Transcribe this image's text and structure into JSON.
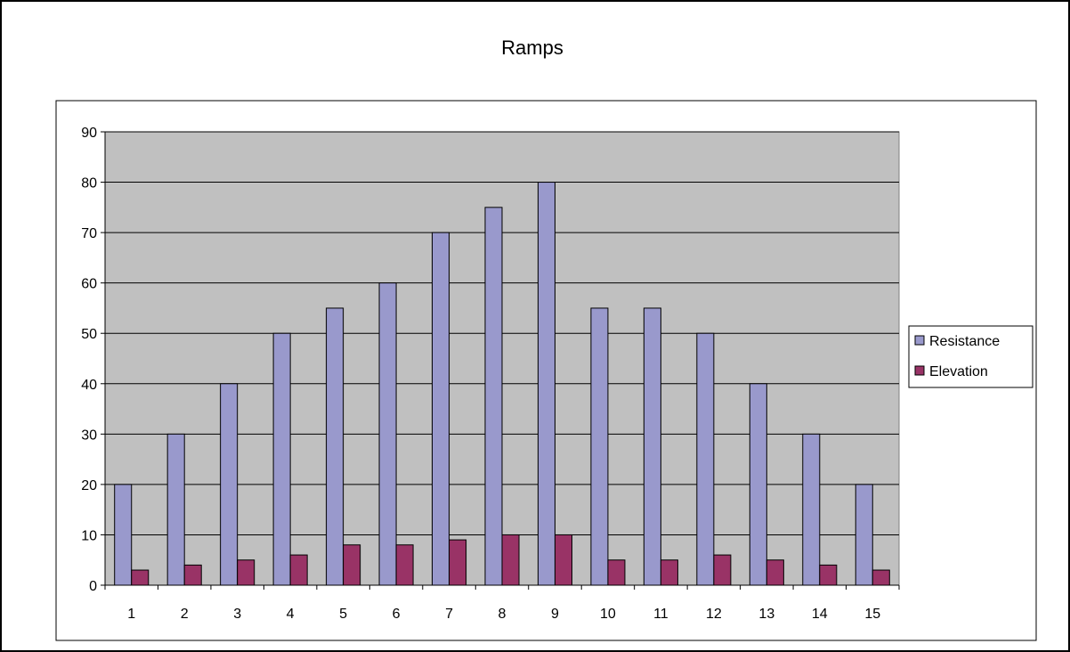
{
  "chart_data": {
    "type": "bar",
    "title": "Ramps",
    "xlabel": "",
    "ylabel": "",
    "categories": [
      "1",
      "2",
      "3",
      "4",
      "5",
      "6",
      "7",
      "8",
      "9",
      "10",
      "11",
      "12",
      "13",
      "14",
      "15"
    ],
    "series": [
      {
        "name": "Resistance",
        "color": "#9999CC",
        "values": [
          20,
          30,
          40,
          50,
          55,
          60,
          70,
          75,
          80,
          55,
          55,
          50,
          40,
          30,
          20
        ]
      },
      {
        "name": "Elevation",
        "color": "#993366",
        "values": [
          3,
          4,
          5,
          6,
          8,
          8,
          9,
          10,
          10,
          5,
          5,
          6,
          5,
          4,
          3
        ]
      }
    ],
    "ylim": [
      0,
      90
    ],
    "yticks": [
      0,
      10,
      20,
      30,
      40,
      50,
      60,
      70,
      80,
      90
    ],
    "grid": true,
    "plot_background": "#C0C0C0",
    "legend_position": "right"
  }
}
